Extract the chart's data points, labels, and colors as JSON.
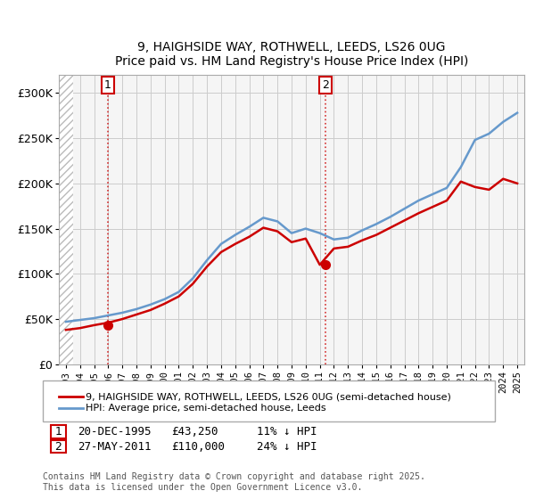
{
  "title_line1": "9, HAIGHSIDE WAY, ROTHWELL, LEEDS, LS26 0UG",
  "title_line2": "Price paid vs. HM Land Registry's House Price Index (HPI)",
  "legend_label_red": "9, HAIGHSIDE WAY, ROTHWELL, LEEDS, LS26 0UG (semi-detached house)",
  "legend_label_blue": "HPI: Average price, semi-detached house, Leeds",
  "annotation1_label": "1",
  "annotation1_date": "20-DEC-1995",
  "annotation1_price": "£43,250",
  "annotation1_hpi": "11% ↓ HPI",
  "annotation2_label": "2",
  "annotation2_date": "27-MAY-2011",
  "annotation2_price": "£110,000",
  "annotation2_hpi": "24% ↓ HPI",
  "footnote": "Contains HM Land Registry data © Crown copyright and database right 2025.\nThis data is licensed under the Open Government Licence v3.0.",
  "red_color": "#cc0000",
  "blue_color": "#6699cc",
  "hatch_color": "#cccccc",
  "grid_color": "#cccccc",
  "bg_color": "#ffffff",
  "plot_bg_color": "#f5f5f5",
  "ylim": [
    0,
    320000
  ],
  "yticks": [
    0,
    50000,
    100000,
    150000,
    200000,
    250000,
    300000
  ],
  "ytick_labels": [
    "£0",
    "£50K",
    "£100K",
    "£150K",
    "£200K",
    "£250K",
    "£300K"
  ],
  "sale1_x": 1995.97,
  "sale1_y": 43250,
  "sale2_x": 2011.41,
  "sale2_y": 110000,
  "hpi_years": [
    1993,
    1994,
    1995,
    1996,
    1997,
    1998,
    1999,
    2000,
    2001,
    2002,
    2003,
    2004,
    2005,
    2006,
    2007,
    2008,
    2009,
    2010,
    2011,
    2012,
    2013,
    2014,
    2015,
    2016,
    2017,
    2018,
    2019,
    2020,
    2021,
    2022,
    2023,
    2024,
    2025
  ],
  "hpi_values": [
    47000,
    49000,
    51000,
    54000,
    57000,
    61000,
    66000,
    72000,
    80000,
    95000,
    115000,
    133000,
    143000,
    152000,
    162000,
    158000,
    145000,
    150000,
    145000,
    138000,
    140000,
    148000,
    155000,
    163000,
    172000,
    181000,
    188000,
    195000,
    218000,
    248000,
    255000,
    268000,
    278000
  ],
  "red_years": [
    1993,
    1994,
    1995,
    1996,
    1997,
    1998,
    1999,
    2000,
    2001,
    2002,
    2003,
    2004,
    2005,
    2006,
    2007,
    2008,
    2009,
    2010,
    2011,
    2012,
    2013,
    2014,
    2015,
    2016,
    2017,
    2018,
    2019,
    2020,
    2021,
    2022,
    2023,
    2024,
    2025
  ],
  "red_values": [
    38000,
    40000,
    43250,
    46000,
    50000,
    55000,
    60000,
    67000,
    75000,
    89000,
    108000,
    124000,
    133000,
    141000,
    151000,
    147000,
    135000,
    139000,
    110000,
    128000,
    130000,
    137000,
    143000,
    151000,
    159000,
    167000,
    174000,
    181000,
    202000,
    196000,
    193000,
    205000,
    200000
  ],
  "xlim_left": 1992.5,
  "xlim_right": 2025.5
}
